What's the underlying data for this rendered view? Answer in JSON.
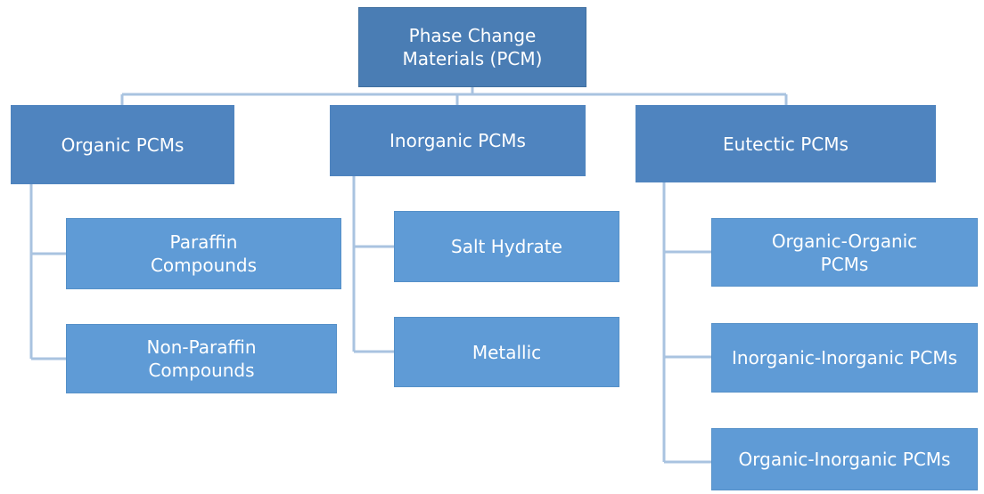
{
  "nodes": [
    {
      "label": "Phase Change Materials (PCM)"
    },
    {
      "label": "Organic PCMs"
    },
    {
      "label": "Inorganic PCMs"
    },
    {
      "label": "Eutectic PCMs"
    },
    {
      "label": "Paraffin Compounds"
    },
    {
      "label": "Non-Paraffin Compounds"
    },
    {
      "label": "Salt Hydrate"
    },
    {
      "label": "Metallic"
    },
    {
      "label": "Organic-Organic PCMs"
    },
    {
      "label": "Inorganic-Inorganic PCMs"
    },
    {
      "label": "Organic-Inorganic PCMs"
    }
  ]
}
